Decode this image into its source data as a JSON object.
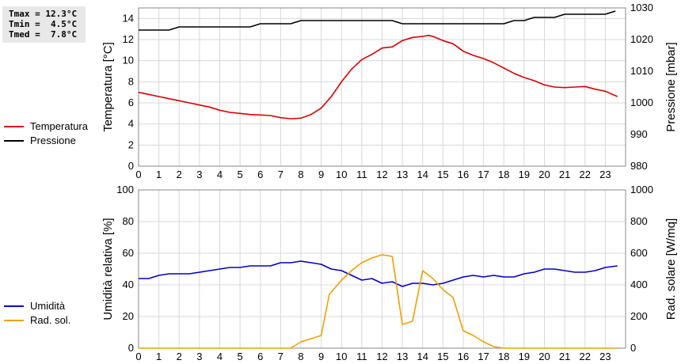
{
  "stats": {
    "tmax": "Tmax = 12.3°C",
    "tmin": "Tmin =  4.5°C",
    "tmed": "Tmed =  7.8°C"
  },
  "chart_data": [
    {
      "type": "line",
      "xlabel": "",
      "x_ticks": [
        0,
        1,
        2,
        3,
        4,
        5,
        6,
        7,
        8,
        9,
        10,
        11,
        12,
        13,
        14,
        15,
        16,
        17,
        18,
        19,
        20,
        21,
        22,
        23
      ],
      "xlim": [
        0,
        24
      ],
      "ylabel_left": "Temperatura [°C]",
      "ylim_left": [
        0,
        15
      ],
      "yticks_left": [
        0,
        2,
        4,
        6,
        8,
        10,
        12,
        14
      ],
      "ylabel_right": "Pressione [mbar]",
      "ylim_right": [
        980,
        1030
      ],
      "yticks_right": [
        980,
        990,
        1000,
        1010,
        1020,
        1030
      ],
      "grid": true,
      "legend_position": "left",
      "series": [
        {
          "name": "Temperatura",
          "axis": "left",
          "color": "#dd0000",
          "points": [
            [
              0,
              7.0
            ],
            [
              0.5,
              6.8
            ],
            [
              1,
              6.6
            ],
            [
              1.5,
              6.4
            ],
            [
              2,
              6.2
            ],
            [
              2.5,
              6.0
            ],
            [
              3,
              5.8
            ],
            [
              3.5,
              5.6
            ],
            [
              4,
              5.3
            ],
            [
              4.5,
              5.1
            ],
            [
              5,
              5.0
            ],
            [
              5.5,
              4.9
            ],
            [
              6,
              4.85
            ],
            [
              6.5,
              4.8
            ],
            [
              7,
              4.6
            ],
            [
              7.5,
              4.5
            ],
            [
              8,
              4.55
            ],
            [
              8.5,
              4.9
            ],
            [
              9,
              5.5
            ],
            [
              9.5,
              6.6
            ],
            [
              10,
              8.0
            ],
            [
              10.5,
              9.2
            ],
            [
              11,
              10.1
            ],
            [
              11.5,
              10.6
            ],
            [
              12,
              11.2
            ],
            [
              12.5,
              11.3
            ],
            [
              13,
              11.9
            ],
            [
              13.5,
              12.2
            ],
            [
              14,
              12.3
            ],
            [
              14.3,
              12.4
            ],
            [
              14.5,
              12.3
            ],
            [
              15,
              11.9
            ],
            [
              15.5,
              11.6
            ],
            [
              16,
              10.9
            ],
            [
              16.5,
              10.5
            ],
            [
              17,
              10.2
            ],
            [
              17.5,
              9.8
            ],
            [
              18,
              9.3
            ],
            [
              18.5,
              8.8
            ],
            [
              19,
              8.4
            ],
            [
              19.5,
              8.1
            ],
            [
              20,
              7.7
            ],
            [
              20.5,
              7.5
            ],
            [
              21,
              7.45
            ],
            [
              21.5,
              7.5
            ],
            [
              22,
              7.55
            ],
            [
              22.5,
              7.3
            ],
            [
              23,
              7.1
            ],
            [
              23.6,
              6.6
            ]
          ]
        },
        {
          "name": "Pressione",
          "axis": "right",
          "color": "#000000",
          "points": [
            [
              0,
              1023
            ],
            [
              1,
              1023
            ],
            [
              1.5,
              1023
            ],
            [
              2,
              1024
            ],
            [
              3,
              1024
            ],
            [
              4,
              1024
            ],
            [
              5,
              1024
            ],
            [
              5.5,
              1024
            ],
            [
              6,
              1025
            ],
            [
              7,
              1025
            ],
            [
              7.5,
              1025
            ],
            [
              8,
              1026
            ],
            [
              9,
              1026
            ],
            [
              10,
              1026
            ],
            [
              11,
              1026
            ],
            [
              12,
              1026
            ],
            [
              12.5,
              1026
            ],
            [
              13,
              1025
            ],
            [
              14,
              1025
            ],
            [
              15,
              1025
            ],
            [
              16,
              1025
            ],
            [
              17,
              1025
            ],
            [
              18,
              1025
            ],
            [
              18.5,
              1026
            ],
            [
              19,
              1026
            ],
            [
              19.5,
              1027
            ],
            [
              20,
              1027
            ],
            [
              20.5,
              1027
            ],
            [
              21,
              1028
            ],
            [
              22,
              1028
            ],
            [
              23,
              1028
            ],
            [
              23.5,
              1029
            ]
          ]
        }
      ]
    },
    {
      "type": "line",
      "xlabel": "",
      "x_ticks": [
        0,
        1,
        2,
        3,
        4,
        5,
        6,
        7,
        8,
        9,
        10,
        11,
        12,
        13,
        14,
        15,
        16,
        17,
        18,
        19,
        20,
        21,
        22,
        23
      ],
      "xlim": [
        0,
        24
      ],
      "ylabel_left": "Umidità relativa [%]",
      "ylim_left": [
        0,
        100
      ],
      "yticks_left": [
        0,
        20,
        40,
        60,
        80,
        100
      ],
      "ylabel_right": "Rad. solare [W/mq]",
      "ylim_right": [
        0,
        1000
      ],
      "yticks_right": [
        0,
        200,
        400,
        600,
        800,
        1000
      ],
      "grid": true,
      "legend_position": "left",
      "series": [
        {
          "name": "Umidità",
          "axis": "left",
          "color": "#0000cc",
          "points": [
            [
              0,
              44
            ],
            [
              0.5,
              44
            ],
            [
              1,
              46
            ],
            [
              1.5,
              47
            ],
            [
              2,
              47
            ],
            [
              2.5,
              47
            ],
            [
              3,
              48
            ],
            [
              3.5,
              49
            ],
            [
              4,
              50
            ],
            [
              4.5,
              51
            ],
            [
              5,
              51
            ],
            [
              5.5,
              52
            ],
            [
              6,
              52
            ],
            [
              6.5,
              52
            ],
            [
              7,
              54
            ],
            [
              7.5,
              54
            ],
            [
              8,
              55
            ],
            [
              8.5,
              54
            ],
            [
              9,
              53
            ],
            [
              9.5,
              50
            ],
            [
              10,
              49
            ],
            [
              10.5,
              46
            ],
            [
              11,
              43
            ],
            [
              11.5,
              44
            ],
            [
              12,
              41
            ],
            [
              12.5,
              42
            ],
            [
              13,
              39
            ],
            [
              13.5,
              41
            ],
            [
              14,
              41
            ],
            [
              14.5,
              40
            ],
            [
              15,
              41
            ],
            [
              15.5,
              43
            ],
            [
              16,
              45
            ],
            [
              16.5,
              46
            ],
            [
              17,
              45
            ],
            [
              17.5,
              46
            ],
            [
              18,
              45
            ],
            [
              18.5,
              45
            ],
            [
              19,
              47
            ],
            [
              19.5,
              48
            ],
            [
              20,
              50
            ],
            [
              20.5,
              50
            ],
            [
              21,
              49
            ],
            [
              21.5,
              48
            ],
            [
              22,
              48
            ],
            [
              22.5,
              49
            ],
            [
              23,
              51
            ],
            [
              23.6,
              52
            ]
          ]
        },
        {
          "name": "Rad. sol.",
          "axis": "right",
          "color": "#f0a000",
          "points": [
            [
              0,
              0
            ],
            [
              7.5,
              0
            ],
            [
              8,
              40
            ],
            [
              8.5,
              60
            ],
            [
              9,
              80
            ],
            [
              9.4,
              340
            ],
            [
              10,
              430
            ],
            [
              10.5,
              490
            ],
            [
              11,
              540
            ],
            [
              11.5,
              570
            ],
            [
              12,
              590
            ],
            [
              12.5,
              580
            ],
            [
              13,
              150
            ],
            [
              13.5,
              170
            ],
            [
              14,
              490
            ],
            [
              14.5,
              440
            ],
            [
              15,
              370
            ],
            [
              15.5,
              320
            ],
            [
              16,
              110
            ],
            [
              16.5,
              80
            ],
            [
              17,
              40
            ],
            [
              17.5,
              10
            ],
            [
              18,
              0
            ],
            [
              23.6,
              0
            ]
          ]
        }
      ]
    }
  ]
}
